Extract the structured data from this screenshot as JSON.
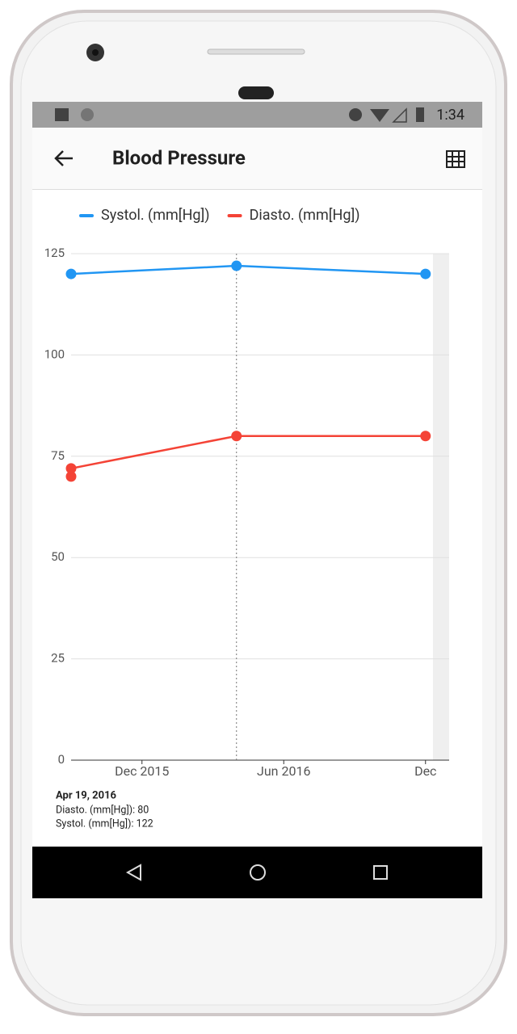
{
  "status_bar": {
    "time": "1:34"
  },
  "app_bar": {
    "title": "Blood Pressure"
  },
  "chart_data": {
    "type": "line",
    "series": [
      {
        "name": "Systol. (mm[Hg])",
        "color": "#2196f3",
        "x": [
          "2015-09",
          "2016-04",
          "2016-12"
        ],
        "values": [
          120,
          122,
          120
        ]
      },
      {
        "name": "Diasto. (mm[Hg])",
        "color": "#f44336",
        "x": [
          "2015-09",
          "2015-09",
          "2016-04",
          "2016-12"
        ],
        "values": [
          70,
          72,
          80,
          80
        ]
      }
    ],
    "xlim": [
      "2015-09",
      "2017-01"
    ],
    "xticks": [
      {
        "value": "2015-12",
        "label": "Dec 2015"
      },
      {
        "value": "2016-06",
        "label": "Jun 2016"
      },
      {
        "value": "2016-12",
        "label": "Dec"
      }
    ],
    "ylim": [
      0,
      125
    ],
    "yticks": [
      0,
      25,
      50,
      75,
      100,
      125
    ],
    "grid": true,
    "highlight_x": "2016-04"
  },
  "tooltip": {
    "date": "Apr 19, 2016",
    "lines": [
      "Diasto. (mm[Hg]): 80",
      "Systol. (mm[Hg]): 122"
    ]
  }
}
